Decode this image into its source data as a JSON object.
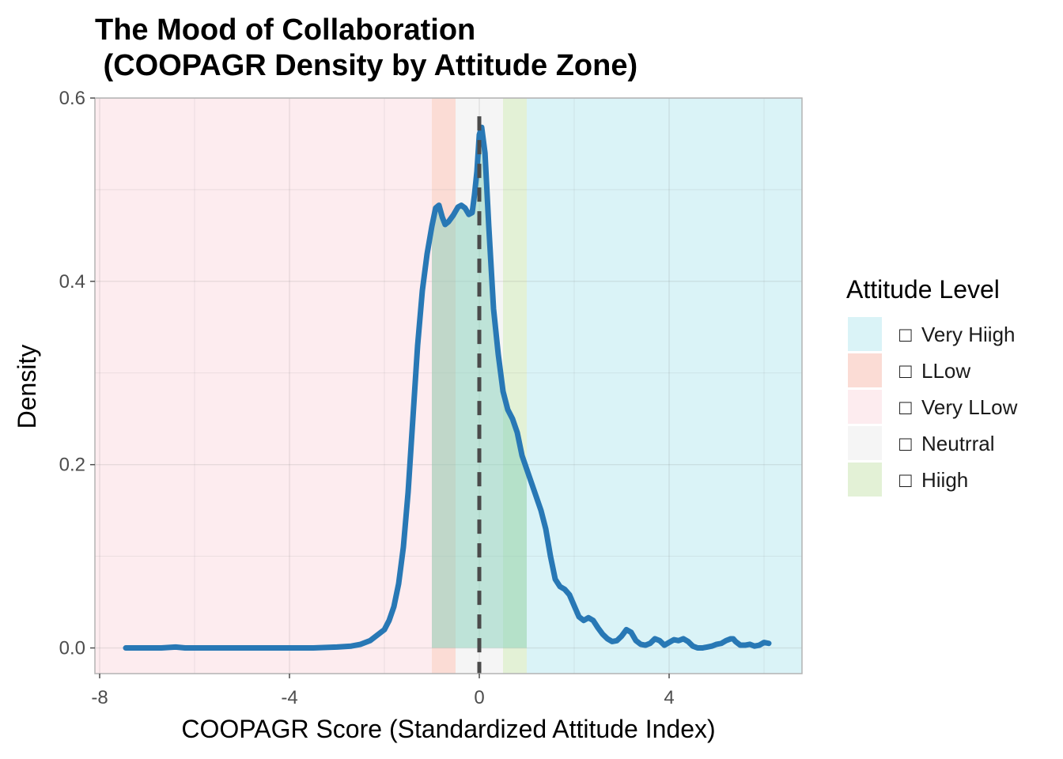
{
  "chart_data": {
    "type": "area",
    "title_line1": "The Mood of Collaboration",
    "title_line2": " (COOPAGR Density by Attitude Zone)",
    "xlabel": "COOPAGR Score (Standardized Attitude Index)",
    "ylabel": "Density",
    "xlim": [
      -8.1,
      6.8
    ],
    "ylim": [
      -0.028,
      0.6
    ],
    "x_ticks": [
      {
        "value": -8,
        "label": "-8"
      },
      {
        "value": -4,
        "label": "-4"
      },
      {
        "value": 0,
        "label": "0"
      },
      {
        "value": 4,
        "label": "4"
      }
    ],
    "y_ticks": [
      {
        "value": 0.0,
        "label": "0.0"
      },
      {
        "value": 0.2,
        "label": "0.2"
      },
      {
        "value": 0.4,
        "label": "0.4"
      },
      {
        "value": 0.6,
        "label": "0.6"
      }
    ],
    "grid": true,
    "zones": [
      {
        "name": "Very LLow",
        "from": -8.1,
        "to": -1.0,
        "color": "#fdecef"
      },
      {
        "name": "LLow",
        "from": -1.0,
        "to": -0.5,
        "color": "#fbdcd5"
      },
      {
        "name": "Neutrral",
        "from": -0.5,
        "to": 0.5,
        "color": "#f5f5f5"
      },
      {
        "name": "Hiigh",
        "from": 0.5,
        "to": 1.0,
        "color": "#e3f1d6"
      },
      {
        "name": "Very Hiigh",
        "from": 1.0,
        "to": 6.8,
        "color": "#daf3f7"
      }
    ],
    "reference_line": {
      "x": 0.0,
      "style": "dashed",
      "color": "#4a4a4a"
    },
    "fill_range": [
      -1.0,
      1.0
    ],
    "fill_color": "#8fd3c0",
    "line_color": "#2878b5",
    "series": [
      {
        "points": [
          [
            -7.45,
            0.0
          ],
          [
            -7.0,
            0.0
          ],
          [
            -6.7,
            0.0
          ],
          [
            -6.4,
            0.001
          ],
          [
            -6.2,
            0.0
          ],
          [
            -5.5,
            0.0
          ],
          [
            -5.0,
            0.0
          ],
          [
            -4.5,
            0.0
          ],
          [
            -4.0,
            0.0
          ],
          [
            -3.5,
            0.0
          ],
          [
            -3.0,
            0.001
          ],
          [
            -2.7,
            0.002
          ],
          [
            -2.5,
            0.004
          ],
          [
            -2.3,
            0.008
          ],
          [
            -2.2,
            0.012
          ],
          [
            -2.0,
            0.02
          ],
          [
            -1.9,
            0.03
          ],
          [
            -1.8,
            0.045
          ],
          [
            -1.7,
            0.07
          ],
          [
            -1.6,
            0.11
          ],
          [
            -1.5,
            0.17
          ],
          [
            -1.4,
            0.25
          ],
          [
            -1.3,
            0.33
          ],
          [
            -1.2,
            0.39
          ],
          [
            -1.1,
            0.43
          ],
          [
            -1.0,
            0.46
          ],
          [
            -0.92,
            0.48
          ],
          [
            -0.85,
            0.483
          ],
          [
            -0.78,
            0.47
          ],
          [
            -0.72,
            0.462
          ],
          [
            -0.65,
            0.465
          ],
          [
            -0.55,
            0.472
          ],
          [
            -0.45,
            0.481
          ],
          [
            -0.38,
            0.483
          ],
          [
            -0.3,
            0.48
          ],
          [
            -0.22,
            0.473
          ],
          [
            -0.15,
            0.475
          ],
          [
            -0.1,
            0.495
          ],
          [
            -0.05,
            0.52
          ],
          [
            0.0,
            0.56
          ],
          [
            0.05,
            0.568
          ],
          [
            0.12,
            0.54
          ],
          [
            0.2,
            0.46
          ],
          [
            0.3,
            0.37
          ],
          [
            0.4,
            0.32
          ],
          [
            0.5,
            0.28
          ],
          [
            0.6,
            0.26
          ],
          [
            0.7,
            0.25
          ],
          [
            0.8,
            0.235
          ],
          [
            0.9,
            0.21
          ],
          [
            1.0,
            0.195
          ],
          [
            1.1,
            0.18
          ],
          [
            1.2,
            0.165
          ],
          [
            1.3,
            0.15
          ],
          [
            1.4,
            0.13
          ],
          [
            1.5,
            0.1
          ],
          [
            1.6,
            0.075
          ],
          [
            1.7,
            0.067
          ],
          [
            1.8,
            0.064
          ],
          [
            1.9,
            0.058
          ],
          [
            2.0,
            0.046
          ],
          [
            2.1,
            0.034
          ],
          [
            2.2,
            0.03
          ],
          [
            2.3,
            0.033
          ],
          [
            2.4,
            0.03
          ],
          [
            2.5,
            0.022
          ],
          [
            2.6,
            0.015
          ],
          [
            2.7,
            0.01
          ],
          [
            2.8,
            0.007
          ],
          [
            2.9,
            0.008
          ],
          [
            3.0,
            0.013
          ],
          [
            3.1,
            0.02
          ],
          [
            3.2,
            0.017
          ],
          [
            3.3,
            0.008
          ],
          [
            3.4,
            0.004
          ],
          [
            3.5,
            0.003
          ],
          [
            3.6,
            0.005
          ],
          [
            3.7,
            0.01
          ],
          [
            3.8,
            0.008
          ],
          [
            3.9,
            0.003
          ],
          [
            4.0,
            0.006
          ],
          [
            4.1,
            0.009
          ],
          [
            4.2,
            0.008
          ],
          [
            4.3,
            0.01
          ],
          [
            4.4,
            0.007
          ],
          [
            4.5,
            0.002
          ],
          [
            4.6,
            0.0
          ],
          [
            4.7,
            0.0
          ],
          [
            4.8,
            0.001
          ],
          [
            4.9,
            0.002
          ],
          [
            5.0,
            0.004
          ],
          [
            5.1,
            0.005
          ],
          [
            5.2,
            0.008
          ],
          [
            5.3,
            0.01
          ],
          [
            5.35,
            0.01
          ],
          [
            5.4,
            0.007
          ],
          [
            5.5,
            0.003
          ],
          [
            5.6,
            0.003
          ],
          [
            5.7,
            0.004
          ],
          [
            5.8,
            0.002
          ],
          [
            5.9,
            0.003
          ],
          [
            6.0,
            0.006
          ],
          [
            6.1,
            0.005
          ]
        ]
      }
    ],
    "legend": {
      "title": "Attitude Level",
      "position": "right",
      "entries": [
        {
          "icon": "□",
          "label": "Very Hiigh",
          "color": "#daf3f7"
        },
        {
          "icon": "□",
          "label": "LLow",
          "color": "#fbdcd5"
        },
        {
          "icon": "□",
          "label": "Very LLow",
          "color": "#fdecef"
        },
        {
          "icon": "□",
          "label": "Neutrral",
          "color": "#f5f5f5"
        },
        {
          "icon": "□",
          "label": "Hiigh",
          "color": "#e3f1d6"
        }
      ]
    }
  }
}
